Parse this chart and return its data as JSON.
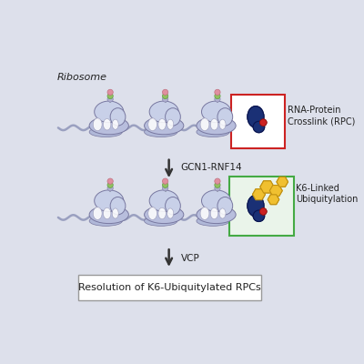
{
  "background_color": "#dde0eb",
  "ribosome_large_color": "#b8bedd",
  "ribosome_large_edge": "#7878a0",
  "ribosome_small_color": "#c8d0e8",
  "ribosome_small_edge": "#7878a0",
  "ribosome_foot_color": "#b0b8d8",
  "mrna_color": "#9aa0c0",
  "protein_color": "#1a3075",
  "protein_edge": "#0a1550",
  "crosslink_color": "#cc2222",
  "crosslink_edge": "#881111",
  "ubiquitin_color": "#f0c030",
  "ubiquitin_edge": "#c09010",
  "pink_ball": "#e090a0",
  "yellow_ball": "#d0c840",
  "green_ball": "#90c060",
  "lavender_ball": "#b0b0d0",
  "stalk_color": "#808898",
  "white_arch": "#ffffff",
  "arch_edge": "#9090b0",
  "red_box_color": "#cc2222",
  "green_box_color": "#44aa44",
  "green_box_fill": "#eaf4ea",
  "arrow_color": "#333333",
  "text_color": "#222222",
  "label_ribosome": "Ribosome",
  "label_rna_protein": "RNA-Protein\nCrosslink (RPC)",
  "label_gcn1": "GCN1-RNF14",
  "label_k6": "K6-Linked\nUbiquitylation",
  "label_vcp": "VCP",
  "label_resolution": "Resolution of K6-Ubiquitylated RPCs"
}
